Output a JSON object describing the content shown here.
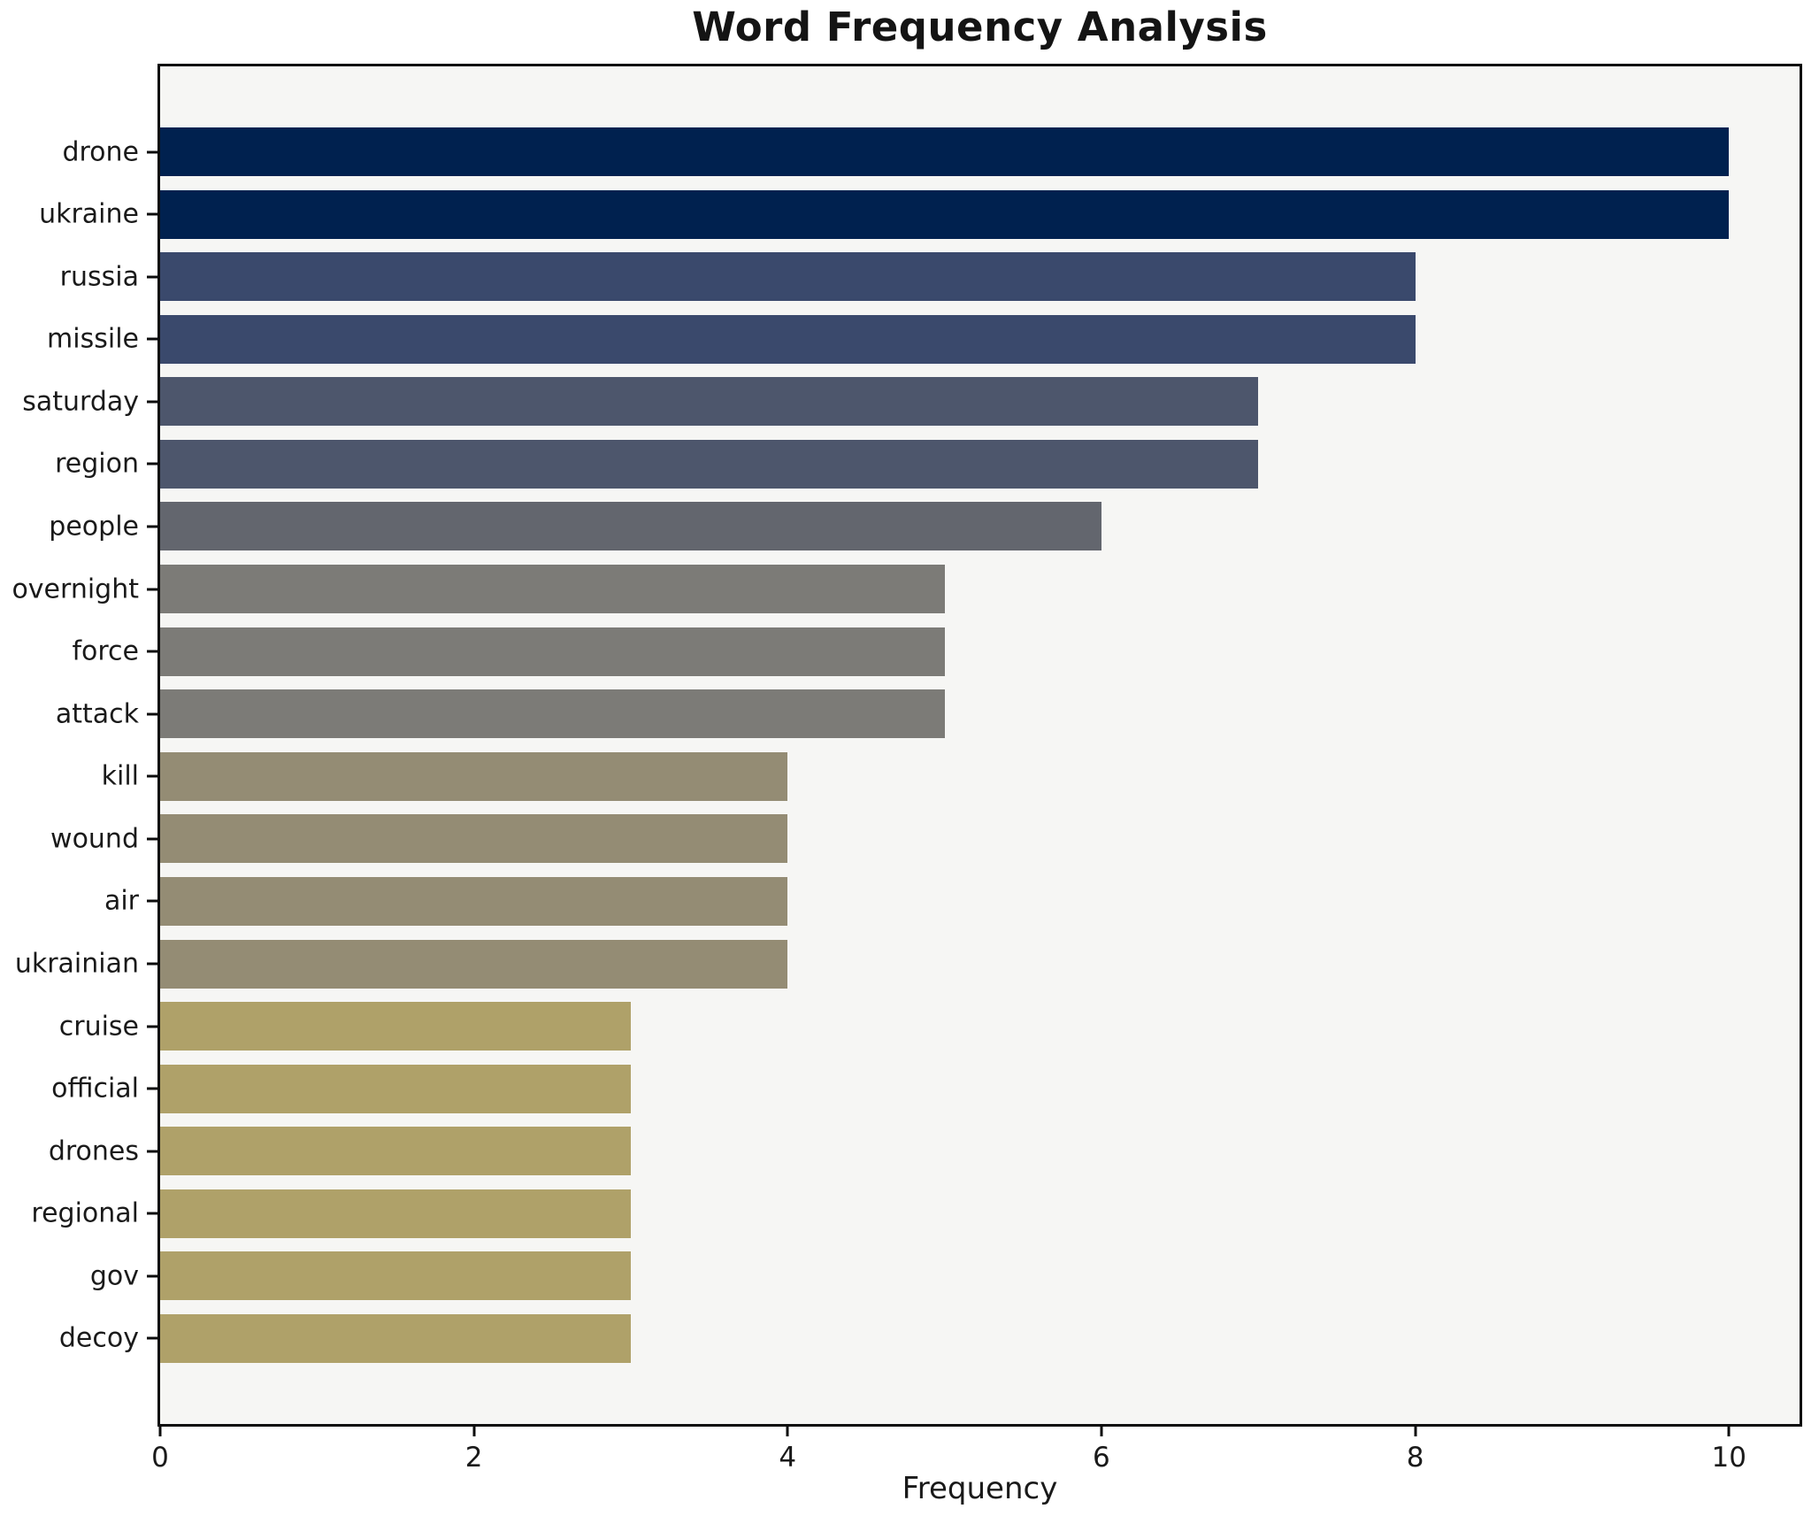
{
  "chart_data": {
    "type": "bar",
    "orientation": "horizontal",
    "title": "Word Frequency Analysis",
    "xlabel": "Frequency",
    "ylabel": "",
    "categories": [
      "drone",
      "ukraine",
      "russia",
      "missile",
      "saturday",
      "region",
      "people",
      "overnight",
      "force",
      "attack",
      "kill",
      "wound",
      "air",
      "ukrainian",
      "cruise",
      "official",
      "drones",
      "regional",
      "gov",
      "decoy"
    ],
    "values": [
      10,
      10,
      8,
      8,
      7,
      7,
      6,
      5,
      5,
      5,
      4,
      4,
      4,
      4,
      3,
      3,
      3,
      3,
      3,
      3
    ],
    "bar_colors": [
      "#00214f",
      "#00214f",
      "#3a496c",
      "#3a496c",
      "#4d566c",
      "#4d566c",
      "#63666e",
      "#7c7b77",
      "#7c7b77",
      "#7c7b77",
      "#948c74",
      "#948c74",
      "#948c74",
      "#948c74",
      "#afa169",
      "#afa169",
      "#afa169",
      "#afa169",
      "#afa169",
      "#afa169"
    ],
    "xlim": [
      0,
      10.45
    ],
    "xticks": [
      0,
      2,
      4,
      6,
      8,
      10
    ],
    "xtick_labels": [
      "0",
      "2",
      "4",
      "6",
      "8",
      "10"
    ],
    "grid": false,
    "legend": "none",
    "plot_bg": "#f6f6f4",
    "figure_bg": "#ffffff",
    "spine_color": "#0d0d0d"
  }
}
